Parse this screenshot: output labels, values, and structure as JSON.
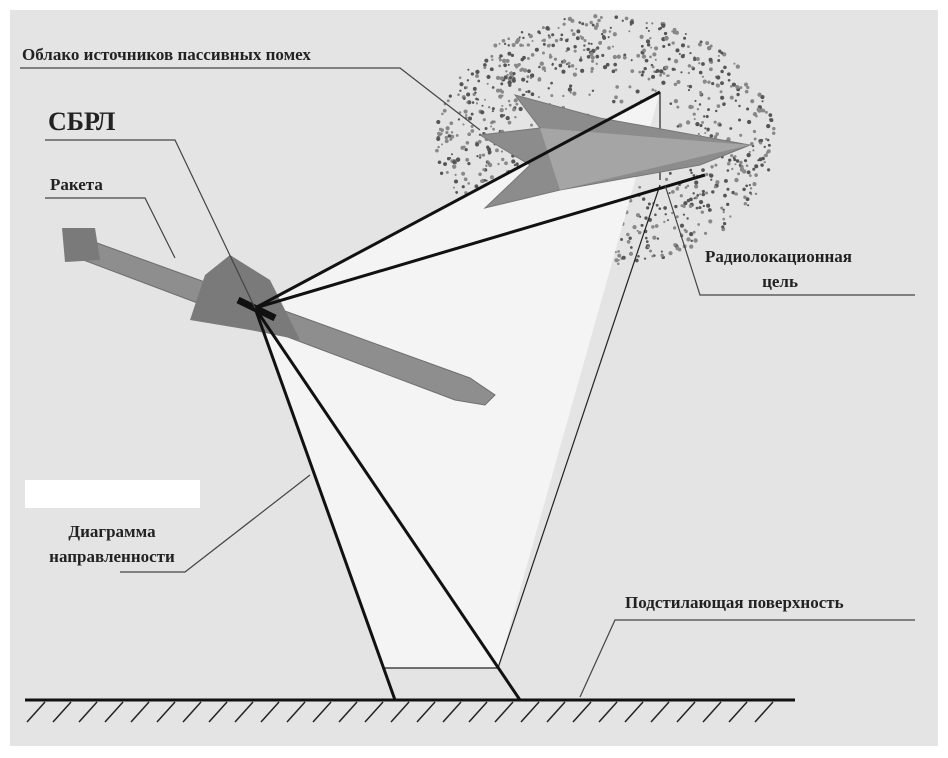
{
  "labels": {
    "cloud": "Облако источников пассивных помех",
    "sbrl": "СБРЛ",
    "missile": "Ракета",
    "target": [
      "Радиолокационная",
      "цель"
    ],
    "pattern": [
      "Диаграмма",
      "направленности"
    ],
    "surface": "Подстилающая поверхность"
  }
}
